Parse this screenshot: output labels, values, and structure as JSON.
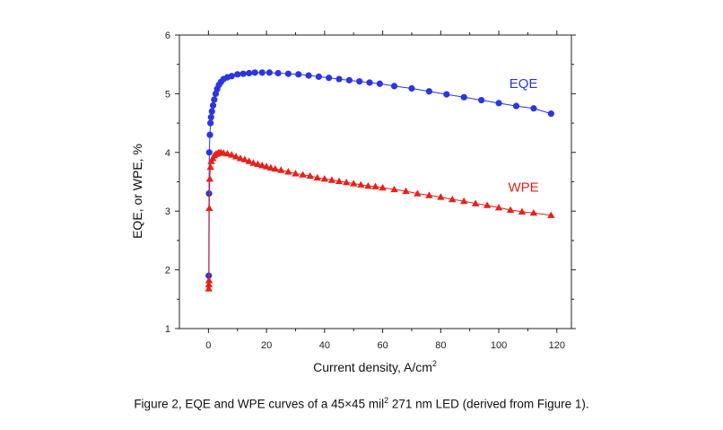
{
  "chart_data": {
    "type": "scatter",
    "xlabel": "Current density, A/cm",
    "xlabel_sup": "2",
    "ylabel": "EQE, or WPE, %",
    "xlim": [
      -10,
      125
    ],
    "ylim": [
      1,
      6
    ],
    "x_ticks": [
      0,
      20,
      40,
      60,
      80,
      100,
      120
    ],
    "y_ticks": [
      1,
      2,
      3,
      4,
      5,
      6
    ],
    "series": [
      {
        "name": "EQE",
        "color": "#2b35e0",
        "marker": "circle",
        "points": [
          [
            0.1,
            1.9
          ],
          [
            0.2,
            3.3
          ],
          [
            0.3,
            4.0
          ],
          [
            0.5,
            4.3
          ],
          [
            0.7,
            4.5
          ],
          [
            0.9,
            4.6
          ],
          [
            1.2,
            4.7
          ],
          [
            1.6,
            4.8
          ],
          [
            2.0,
            4.9
          ],
          [
            2.5,
            5.0
          ],
          [
            3.0,
            5.08
          ],
          [
            3.6,
            5.15
          ],
          [
            4.3,
            5.2
          ],
          [
            5.2,
            5.25
          ],
          [
            6.5,
            5.28
          ],
          [
            8.0,
            5.3
          ],
          [
            10.0,
            5.33
          ],
          [
            12.0,
            5.34
          ],
          [
            14.0,
            5.35
          ],
          [
            16.0,
            5.36
          ],
          [
            18.5,
            5.36
          ],
          [
            21.0,
            5.36
          ],
          [
            24.0,
            5.35
          ],
          [
            27.5,
            5.34
          ],
          [
            31.0,
            5.33
          ],
          [
            34.5,
            5.31
          ],
          [
            38.0,
            5.29
          ],
          [
            41.5,
            5.27
          ],
          [
            45.0,
            5.25
          ],
          [
            48.5,
            5.23
          ],
          [
            52.0,
            5.21
          ],
          [
            55.5,
            5.19
          ],
          [
            59.0,
            5.17
          ],
          [
            64.0,
            5.13
          ],
          [
            70.0,
            5.09
          ],
          [
            76.0,
            5.04
          ],
          [
            82.0,
            4.99
          ],
          [
            88.0,
            4.94
          ],
          [
            94.0,
            4.89
          ],
          [
            100.0,
            4.84
          ],
          [
            106.0,
            4.79
          ],
          [
            112.0,
            4.75
          ],
          [
            118.0,
            4.66
          ]
        ]
      },
      {
        "name": "WPE",
        "color": "#e8201a",
        "marker": "triangle",
        "points": [
          [
            0.1,
            1.68
          ],
          [
            0.15,
            1.75
          ],
          [
            0.2,
            1.82
          ],
          [
            0.3,
            3.05
          ],
          [
            0.45,
            3.55
          ],
          [
            0.7,
            3.75
          ],
          [
            1.0,
            3.85
          ],
          [
            1.5,
            3.9
          ],
          [
            2.0,
            3.95
          ],
          [
            2.5,
            3.97
          ],
          [
            3.0,
            3.98
          ],
          [
            3.6,
            4.0
          ],
          [
            4.3,
            4.0
          ],
          [
            5.2,
            3.99
          ],
          [
            6.5,
            3.98
          ],
          [
            8.0,
            3.96
          ],
          [
            9.5,
            3.93
          ],
          [
            11.0,
            3.9
          ],
          [
            12.5,
            3.88
          ],
          [
            14.0,
            3.85
          ],
          [
            15.5,
            3.82
          ],
          [
            17.0,
            3.8
          ],
          [
            18.5,
            3.78
          ],
          [
            20.0,
            3.76
          ],
          [
            21.5,
            3.74
          ],
          [
            23.0,
            3.72
          ],
          [
            25.0,
            3.7
          ],
          [
            27.5,
            3.67
          ],
          [
            30.0,
            3.64
          ],
          [
            32.5,
            3.62
          ],
          [
            35.0,
            3.6
          ],
          [
            37.5,
            3.57
          ],
          [
            40.0,
            3.55
          ],
          [
            42.5,
            3.53
          ],
          [
            45.0,
            3.51
          ],
          [
            47.5,
            3.49
          ],
          [
            50.0,
            3.47
          ],
          [
            52.5,
            3.45
          ],
          [
            55.0,
            3.43
          ],
          [
            57.5,
            3.42
          ],
          [
            60.0,
            3.4
          ],
          [
            64.0,
            3.37
          ],
          [
            68.0,
            3.34
          ],
          [
            72.0,
            3.3
          ],
          [
            76.0,
            3.27
          ],
          [
            80.0,
            3.24
          ],
          [
            84.0,
            3.2
          ],
          [
            88.0,
            3.17
          ],
          [
            92.0,
            3.13
          ],
          [
            96.0,
            3.1
          ],
          [
            100.0,
            3.06
          ],
          [
            104.0,
            3.02
          ],
          [
            108.0,
            2.99
          ],
          [
            112.0,
            2.97
          ],
          [
            118.0,
            2.93
          ]
        ]
      }
    ],
    "annotations": [
      {
        "text": "EQE",
        "x": 108.5,
        "y": 5.1,
        "color": "#2b35e0"
      },
      {
        "text": "WPE",
        "x": 108.5,
        "y": 3.33,
        "color": "#e8201a"
      }
    ],
    "grid": false,
    "legend": "none"
  },
  "caption": {
    "pre": "Figure 2, EQE and WPE curves of a 45×45 mil",
    "sup": "2",
    "post": " 271 nm LED (derived from Figure 1)."
  }
}
